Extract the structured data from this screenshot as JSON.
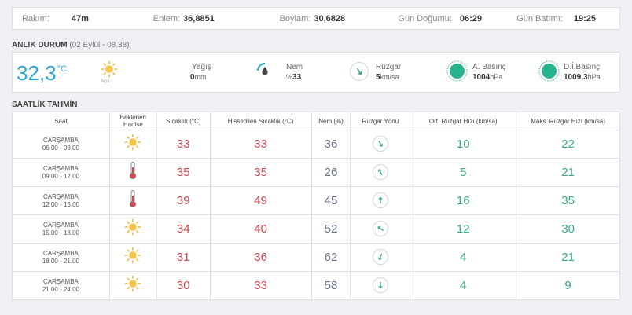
{
  "info_bar": {
    "altitude_label": "Rakım:",
    "altitude_value": "47m",
    "latitude_label": "Enlem:",
    "latitude_value": "36,8851",
    "longitude_label": "Boylam:",
    "longitude_value": "30,6828",
    "sunrise_label": "Gün Doğumu:",
    "sunrise_value": "06:29",
    "sunset_label": "Gün Batımı:",
    "sunset_value": "19:25"
  },
  "current": {
    "section_title": "ANLIK DURUM",
    "section_sub": "(02 Eylül - 08.38)",
    "temperature": "32,3",
    "temperature_unit": "°C",
    "sky_label": "Açık",
    "sky_icon": "sun-icon",
    "rain_label": "Yağış",
    "rain_value": "0",
    "rain_unit": "mm",
    "humidity_label": "Nem",
    "humidity_prefix": "%",
    "humidity_value": "33",
    "wind_label": "Rüzgar",
    "wind_value": "5",
    "wind_unit": "km/sa",
    "pressure_label": "A. Basınç",
    "pressure_value": "1004",
    "pressure_unit": "hPa",
    "sea_pressure_label": "D.İ.Basınç",
    "sea_pressure_value": "1009,3",
    "sea_pressure_unit": "hPa",
    "accent_color": "#2ba6d6",
    "pressure_color": "#27b38d"
  },
  "hourly": {
    "section_title": "SAATLİK TAHMİN",
    "headers": {
      "time": "Saat",
      "event": "Beklenen Hadise",
      "temp": "Sıcaklık (°C)",
      "feels": "Hissedilen Sıcaklık (°C)",
      "humidity": "Nem (%)",
      "wind_dir": "Rüzgar Yönü",
      "avg_wind": "Ort. Rüzgar Hızı (km/sa)",
      "max_wind": "Maks. Rüzgar Hızı (km/sa)"
    },
    "rows": [
      {
        "day": "ÇARŞAMBA",
        "time": "06.00 - 09.00",
        "icon": "sun-icon",
        "temp": "33",
        "feels": "33",
        "humidity": "36",
        "wind_rot": 150,
        "avg": "10",
        "max": "22"
      },
      {
        "day": "ÇARŞAMBA",
        "time": "09.00 - 12.00",
        "icon": "thermometer-icon",
        "temp": "35",
        "feels": "35",
        "humidity": "26",
        "wind_rot": -25,
        "avg": "5",
        "max": "21"
      },
      {
        "day": "ÇARŞAMBA",
        "time": "12.00 - 15.00",
        "icon": "thermometer-icon",
        "temp": "39",
        "feels": "49",
        "humidity": "45",
        "wind_rot": 0,
        "avg": "16",
        "max": "35"
      },
      {
        "day": "ÇARŞAMBA",
        "time": "15.00 - 18.00",
        "icon": "sun-icon",
        "temp": "34",
        "feels": "40",
        "humidity": "52",
        "wind_rot": -55,
        "avg": "12",
        "max": "30"
      },
      {
        "day": "ÇARŞAMBA",
        "time": "18.00 - 21.00",
        "icon": "sun-icon",
        "temp": "31",
        "feels": "36",
        "humidity": "62",
        "wind_rot": 200,
        "avg": "4",
        "max": "21"
      },
      {
        "day": "ÇARŞAMBA",
        "time": "21.00 - 24.00",
        "icon": "sun-icon",
        "temp": "30",
        "feels": "33",
        "humidity": "58",
        "wind_rot": 180,
        "avg": "4",
        "max": "9"
      }
    ],
    "colors": {
      "temp": "#c64b54",
      "humidity": "#6b7188",
      "wind": "#3aa88a"
    }
  }
}
